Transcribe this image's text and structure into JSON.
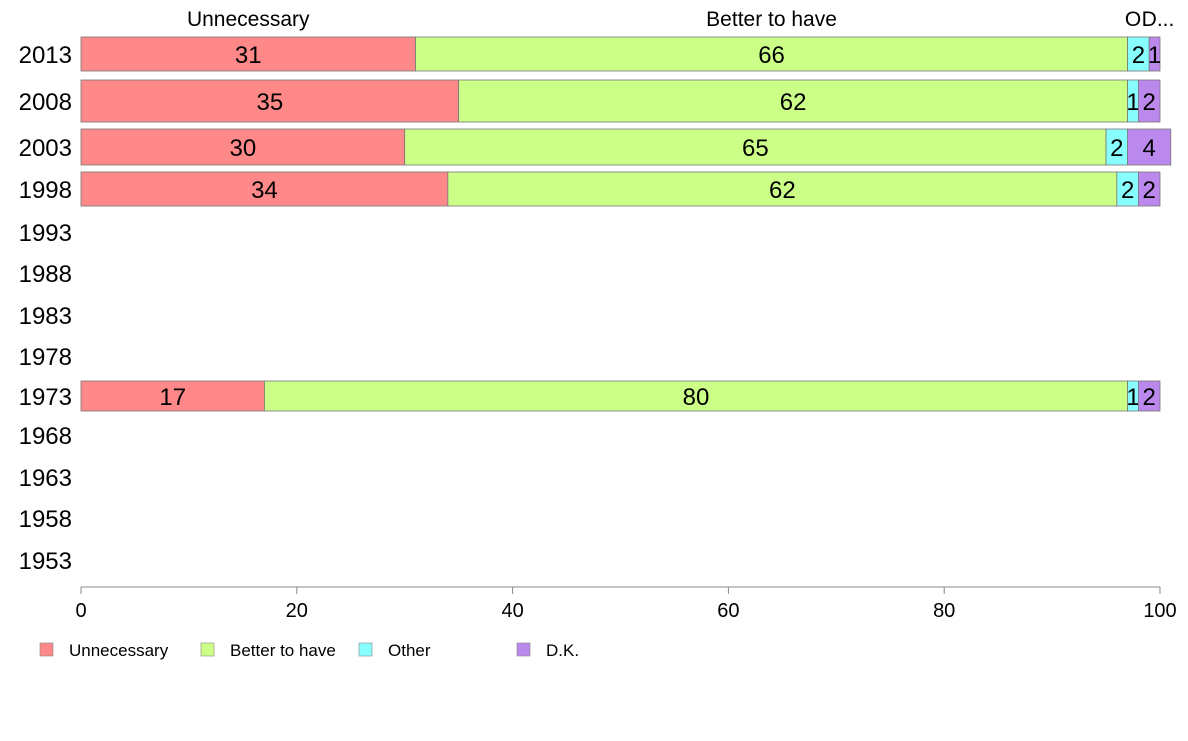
{
  "chart_data": {
    "type": "bar",
    "orientation": "horizontal",
    "stacked": true,
    "categories": [
      "2013",
      "2008",
      "2003",
      "1998",
      "1993",
      "1988",
      "1983",
      "1978",
      "1973",
      "1968",
      "1963",
      "1958",
      "1953"
    ],
    "series": [
      {
        "name": "Unnecessary",
        "color": "#ff8888",
        "values": [
          31,
          35,
          30,
          34,
          null,
          null,
          null,
          null,
          17,
          null,
          null,
          null,
          null
        ]
      },
      {
        "name": "Better to have",
        "color": "#ccff88",
        "values": [
          66,
          62,
          65,
          62,
          null,
          null,
          null,
          null,
          80,
          null,
          null,
          null,
          null
        ]
      },
      {
        "name": "Other",
        "color": "#88ffff",
        "values": [
          2,
          1,
          2,
          2,
          null,
          null,
          null,
          null,
          1,
          null,
          null,
          null,
          null
        ]
      },
      {
        "name": "D.K.",
        "color": "#bb88ee",
        "values": [
          1,
          2,
          4,
          2,
          null,
          null,
          null,
          null,
          2,
          null,
          null,
          null,
          null
        ]
      }
    ],
    "top_labels": [
      "Unnecessary",
      "Better to have",
      "O",
      "D..."
    ],
    "xlim": [
      0,
      100
    ],
    "xticks": [
      0,
      20,
      40,
      60,
      80,
      100
    ],
    "grid": false,
    "legend_position": "bottom-left"
  }
}
